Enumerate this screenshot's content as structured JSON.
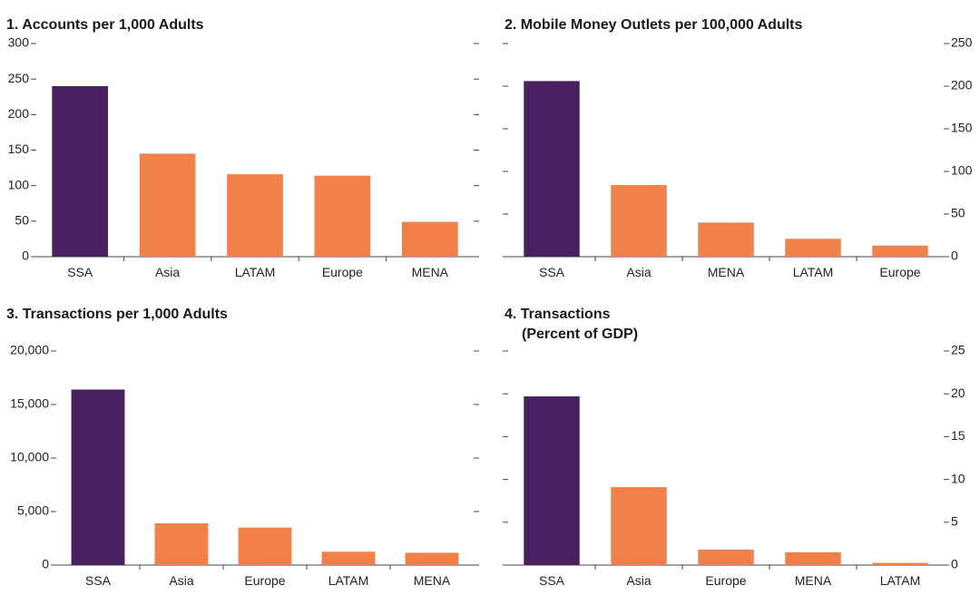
{
  "colors": {
    "highlight": "#4a2160",
    "other": "#f28049",
    "axis": "#444444"
  },
  "chart_data": [
    {
      "type": "bar",
      "title": "1. Accounts per 1,000 Adults",
      "subtitle": "",
      "categories": [
        "SSA",
        "Asia",
        "LATAM",
        "Europe",
        "MENA"
      ],
      "values": [
        240,
        145,
        116,
        114,
        49
      ],
      "highlight": "SSA",
      "ylim": [
        0,
        300
      ],
      "yticks": [
        0,
        50,
        100,
        150,
        200,
        250,
        300
      ],
      "ytick_labels": [
        "0",
        "50",
        "100",
        "150",
        "200",
        "250",
        "300"
      ],
      "labels_side": "left",
      "grid": false
    },
    {
      "type": "bar",
      "title": "2. Mobile Money Outlets per 100,000 Adults",
      "subtitle": "",
      "categories": [
        "SSA",
        "Asia",
        "MENA",
        "LATAM",
        "Europe"
      ],
      "values": [
        206,
        84,
        40,
        21,
        13
      ],
      "highlight": "SSA",
      "ylim": [
        0,
        250
      ],
      "yticks": [
        0,
        50,
        100,
        150,
        200,
        250
      ],
      "ytick_labels": [
        "0",
        "50",
        "100",
        "150",
        "200",
        "250"
      ],
      "labels_side": "right",
      "grid": false
    },
    {
      "type": "bar",
      "title": "3. Transactions per 1,000 Adults",
      "subtitle": "",
      "categories": [
        "SSA",
        "Asia",
        "Europe",
        "LATAM",
        "MENA"
      ],
      "values": [
        16400,
        3900,
        3500,
        1250,
        1150
      ],
      "highlight": "SSA",
      "ylim": [
        0,
        20000
      ],
      "yticks": [
        0,
        5000,
        10000,
        15000,
        20000
      ],
      "ytick_labels": [
        "0",
        "5,000",
        "10,000",
        "15,000",
        "20,000"
      ],
      "labels_side": "left",
      "grid": false
    },
    {
      "type": "bar",
      "title": "4. Transactions",
      "subtitle": "(Percent of GDP)",
      "categories": [
        "SSA",
        "Asia",
        "Europe",
        "MENA",
        "LATAM"
      ],
      "values": [
        19.7,
        9.1,
        1.8,
        1.5,
        0.25
      ],
      "highlight": "SSA",
      "ylim": [
        0,
        25
      ],
      "yticks": [
        0,
        5,
        10,
        15,
        20,
        25
      ],
      "ytick_labels": [
        "0",
        "5",
        "10",
        "15",
        "20",
        "25"
      ],
      "labels_side": "right",
      "grid": false
    }
  ]
}
